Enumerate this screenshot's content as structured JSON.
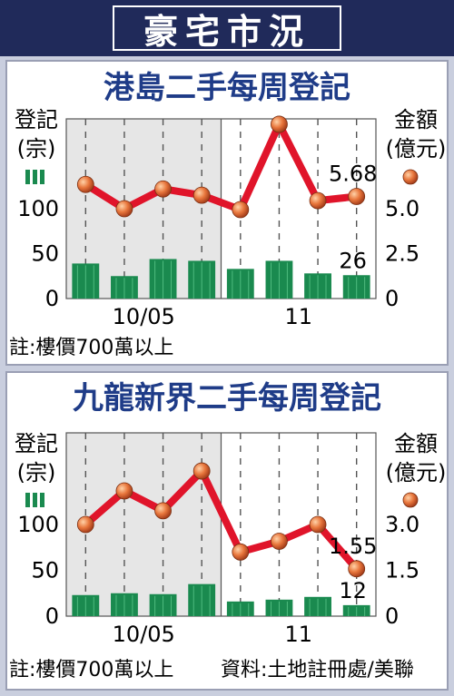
{
  "header": {
    "title": "豪宅市況"
  },
  "chart_data": [
    {
      "type": "bar+line",
      "title": "港島二手每周登記",
      "left_axis_label": [
        "登記",
        "(宗)"
      ],
      "right_axis_label": [
        "金額",
        "(億元)"
      ],
      "x_tick_labels": [
        "10/05",
        "11"
      ],
      "left_ticks": [
        "0",
        "50",
        "100"
      ],
      "right_ticks": [
        "0",
        "2.5",
        "5.0"
      ],
      "ylim_left": [
        0,
        200
      ],
      "ylim_right": [
        0,
        10
      ],
      "bar_values": [
        39,
        25,
        44,
        42,
        33,
        42,
        28,
        26
      ],
      "line_values": [
        6.35,
        5.0,
        6.1,
        5.75,
        4.95,
        9.7,
        5.45,
        5.68
      ],
      "labels": {
        "bar_last": "26",
        "line_last": "5.68"
      },
      "note": "註:樓價700萬以上",
      "shaded_weeks": 4
    },
    {
      "type": "bar+line",
      "title": "九龍新界二手每周登記",
      "left_axis_label": [
        "登記",
        "(宗)"
      ],
      "right_axis_label": [
        "金額",
        "(億元)"
      ],
      "x_tick_labels": [
        "10/05",
        "11"
      ],
      "left_ticks": [
        "0",
        "50",
        "100"
      ],
      "right_ticks": [
        "0",
        "1.5",
        "3.0"
      ],
      "ylim_left": [
        0,
        200
      ],
      "ylim_right": [
        0,
        6
      ],
      "bar_values": [
        23,
        25,
        24,
        35,
        16,
        18,
        21,
        12
      ],
      "line_values": [
        3.0,
        4.1,
        3.45,
        4.75,
        2.1,
        2.45,
        3.0,
        1.55
      ],
      "labels": {
        "bar_last": "12",
        "line_last": "1.55"
      },
      "note": "註:樓價700萬以上",
      "source": "資料:土地註冊處/美聯",
      "shaded_weeks": 4
    }
  ],
  "colors": {
    "bar": "#1a8a4f",
    "line": "#e0142a",
    "marker": "#e8763c",
    "shade": "#e6e6e6",
    "title_bg": "#202a5a",
    "panel_bg": "#c9cede"
  }
}
